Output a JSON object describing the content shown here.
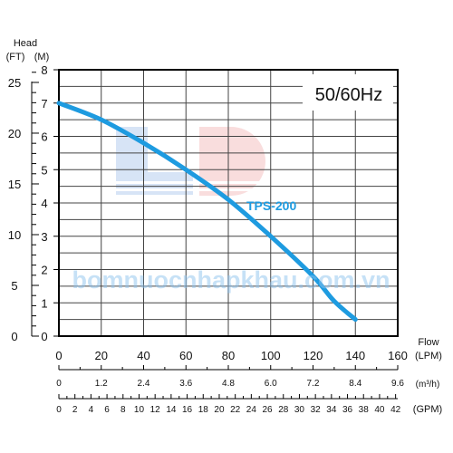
{
  "chart_data": {
    "type": "line",
    "title": "50/60Hz",
    "y_label_left": "Head",
    "y_units_ft": "(FT)",
    "y_units_m": "(M)",
    "x_label": "Flow",
    "x_unit_lpm": "(LPM)",
    "x_unit_m3h": "(m³/h)",
    "x_unit_gpm": "(GPM)",
    "xlim": [
      0,
      160
    ],
    "ylim": [
      0,
      8
    ],
    "grid": true,
    "x_ticks_lpm": [
      "0",
      "20",
      "40",
      "60",
      "80",
      "100",
      "120",
      "140",
      "160"
    ],
    "x_ticks_m3h": [
      "0",
      "1.2",
      "2.4",
      "3.6",
      "4.8",
      "6.0",
      "7.2",
      "8.4",
      "9.6"
    ],
    "x_ticks_gpm": [
      "0",
      "2",
      "4",
      "6",
      "8",
      "10",
      "12",
      "14",
      "16",
      "18",
      "20",
      "22",
      "24",
      "26",
      "28",
      "30",
      "32",
      "34",
      "36",
      "38",
      "40",
      "42"
    ],
    "y_ticks_m": [
      "0",
      "1",
      "2",
      "3",
      "4",
      "5",
      "6",
      "7",
      "8"
    ],
    "y_ticks_ft": [
      "0",
      "5",
      "10",
      "15",
      "20",
      "25"
    ],
    "series": [
      {
        "name": "TPS-200",
        "color": "#1e9be0",
        "x": [
          0,
          20,
          40,
          60,
          80,
          100,
          120,
          130,
          140
        ],
        "y": [
          7.0,
          6.5,
          5.8,
          5.0,
          4.1,
          3.0,
          1.8,
          1.05,
          0.5
        ]
      }
    ]
  },
  "watermark_text": "bomnuocnhapkhau.com.vn"
}
